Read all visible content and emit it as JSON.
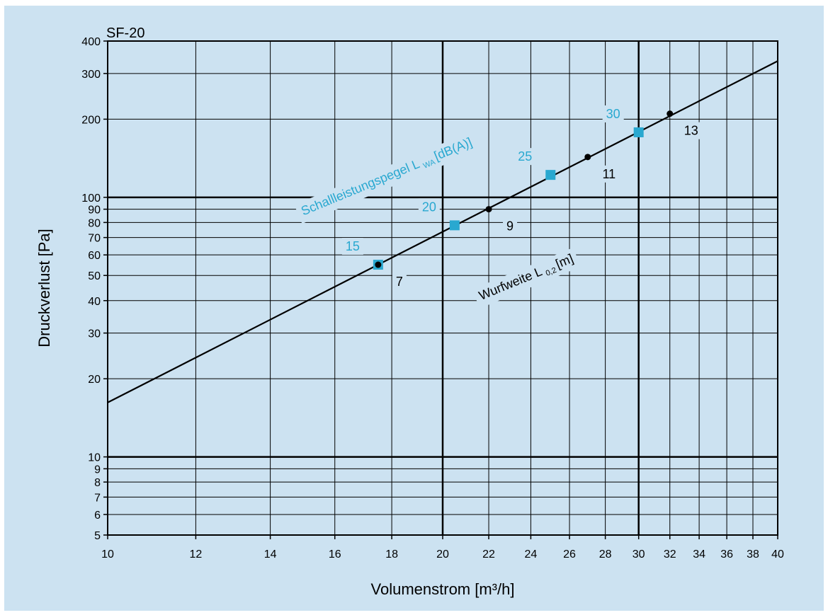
{
  "chart_data": {
    "type": "line",
    "title": "SF-20",
    "xlabel": "Volumenstrom [m³/h]",
    "ylabel": "Druckverlust [Pa]",
    "xscale": "log",
    "yscale": "log",
    "xlim": [
      10,
      40
    ],
    "ylim": [
      5,
      400
    ],
    "grid": true,
    "x_ticks": [
      10,
      12,
      14,
      16,
      18,
      20,
      22,
      24,
      26,
      28,
      30,
      32,
      34,
      36,
      38,
      40
    ],
    "x_major_ticks": [
      20,
      30
    ],
    "y_ticks": [
      5,
      6,
      7,
      8,
      9,
      10,
      20,
      30,
      40,
      50,
      60,
      70,
      80,
      90,
      100,
      200,
      300,
      400
    ],
    "y_major_ticks": [
      10,
      100
    ],
    "line": {
      "x": [
        10,
        40
      ],
      "y": [
        16.2,
        335
      ]
    },
    "sound_power_level": {
      "label_main": "Schallleistungspegel L",
      "label_sub": "WA",
      "label_unit": "[dB(A)]",
      "color": "#29a8d0",
      "points": [
        {
          "label": "15",
          "x": 17.5,
          "y": 55
        },
        {
          "label": "20",
          "x": 20.5,
          "y": 78
        },
        {
          "label": "25",
          "x": 25,
          "y": 122
        },
        {
          "label": "30",
          "x": 30,
          "y": 178
        }
      ]
    },
    "throw_distance": {
      "label_main": "Wurfweite L",
      "label_sub": "0,2",
      "label_unit": "[m]",
      "color": "#000000",
      "points": [
        {
          "label": "7",
          "x": 17.5,
          "y": 55
        },
        {
          "label": "9",
          "x": 22,
          "y": 90
        },
        {
          "label": "11",
          "x": 27,
          "y": 143
        },
        {
          "label": "13",
          "x": 32,
          "y": 210
        }
      ]
    }
  }
}
